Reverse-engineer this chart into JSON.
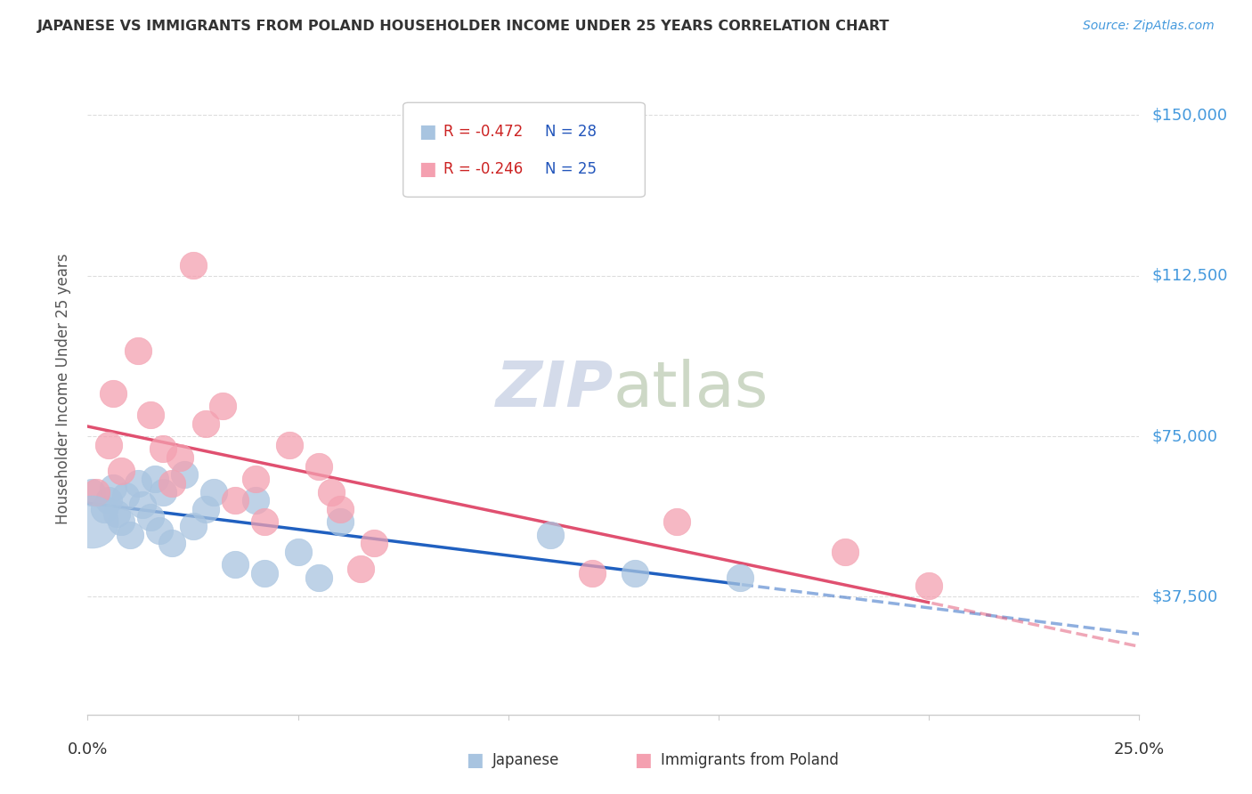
{
  "title": "JAPANESE VS IMMIGRANTS FROM POLAND HOUSEHOLDER INCOME UNDER 25 YEARS CORRELATION CHART",
  "source": "Source: ZipAtlas.com",
  "ylabel": "Householder Income Under 25 years",
  "ytick_labels": [
    "$37,500",
    "$75,000",
    "$112,500",
    "$150,000"
  ],
  "ytick_values": [
    37500,
    75000,
    112500,
    150000
  ],
  "ymin": 10000,
  "ymax": 162000,
  "xmin": 0.0,
  "xmax": 0.25,
  "legend_r_blue": "R = -0.472",
  "legend_n_blue": "N = 28",
  "legend_r_pink": "R = -0.246",
  "legend_n_pink": "N = 25",
  "legend_label_blue": "Japanese",
  "legend_label_pink": "Immigrants from Poland",
  "blue_color": "#a8c4e0",
  "pink_color": "#f4a0b0",
  "blue_line_color": "#2060c0",
  "pink_line_color": "#e05070",
  "background_color": "#ffffff",
  "watermark_zip": "ZIP",
  "watermark_atlas": "atlas",
  "japanese_x": [
    0.001,
    0.004,
    0.005,
    0.006,
    0.007,
    0.008,
    0.009,
    0.01,
    0.012,
    0.013,
    0.015,
    0.016,
    0.017,
    0.018,
    0.02,
    0.023,
    0.025,
    0.028,
    0.03,
    0.035,
    0.04,
    0.042,
    0.05,
    0.055,
    0.06,
    0.11,
    0.13,
    0.155
  ],
  "japanese_y": [
    62000,
    58000,
    60000,
    63000,
    57000,
    55000,
    61000,
    52000,
    64000,
    59000,
    56000,
    65000,
    53000,
    62000,
    50000,
    66000,
    54000,
    58000,
    62000,
    45000,
    60000,
    43000,
    48000,
    42000,
    55000,
    52000,
    43000,
    42000
  ],
  "polish_x": [
    0.002,
    0.005,
    0.006,
    0.008,
    0.012,
    0.015,
    0.018,
    0.02,
    0.022,
    0.025,
    0.028,
    0.032,
    0.035,
    0.04,
    0.042,
    0.048,
    0.055,
    0.058,
    0.06,
    0.065,
    0.068,
    0.12,
    0.14,
    0.18,
    0.2
  ],
  "polish_y": [
    62000,
    73000,
    85000,
    67000,
    95000,
    80000,
    72000,
    64000,
    70000,
    115000,
    78000,
    82000,
    60000,
    65000,
    55000,
    73000,
    68000,
    62000,
    58000,
    44000,
    50000,
    43000,
    55000,
    48000,
    40000
  ]
}
